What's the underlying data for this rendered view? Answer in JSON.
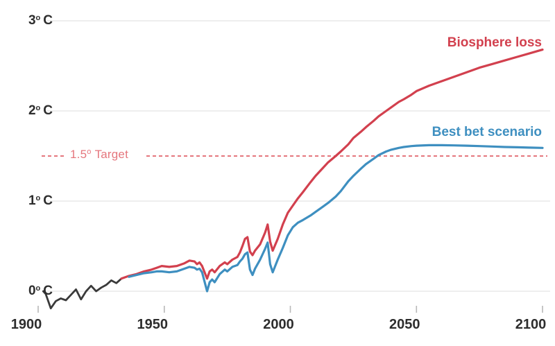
{
  "colors": {
    "background": "#ffffff",
    "grid": "#e9e9e9",
    "tick": "#b8b8b8",
    "axis_text": "#2d2d2d",
    "historical_line": "#3a3a3a",
    "biosphere_line": "#d2404e",
    "bestbet_line": "#3e8fc0",
    "target_line": "#e5767d"
  },
  "chart_data": {
    "type": "line",
    "title": "",
    "xlabel": "",
    "ylabel": "",
    "x_axis": {
      "range": [
        1900,
        2100
      ],
      "ticks": [
        {
          "label": "1900",
          "year": 1900
        },
        {
          "label": "1950",
          "year": 1950
        },
        {
          "label": "2000",
          "year": 2000
        },
        {
          "label": "2050",
          "year": 2050
        },
        {
          "label": "2100",
          "year": 2100
        }
      ]
    },
    "y_axis": {
      "range": [
        -0.25,
        3.1
      ],
      "grid": true,
      "ticks": [
        {
          "num": "0",
          "sup": "o",
          "unit": "C",
          "value": 0
        },
        {
          "num": "1",
          "sup": "o",
          "unit": "C",
          "value": 1
        },
        {
          "num": "2",
          "sup": "o",
          "unit": "C",
          "value": 2
        },
        {
          "num": "3",
          "sup": "o",
          "unit": "C",
          "value": 3
        }
      ]
    },
    "target": {
      "value": 1.5,
      "label_num": "1.5",
      "label_sup": "o",
      "label_word": "Target",
      "color": "#e5767d"
    },
    "legend_position": "inline end-of-line labels",
    "series": [
      {
        "id": "historical",
        "label": "",
        "color": "#3a3a3a",
        "width": 2.8,
        "points": [
          [
            1902,
            0.0
          ],
          [
            1903,
            -0.03
          ],
          [
            1905,
            -0.19
          ],
          [
            1907,
            -0.11
          ],
          [
            1909,
            -0.08
          ],
          [
            1911,
            -0.1
          ],
          [
            1913,
            -0.04
          ],
          [
            1915,
            0.02
          ],
          [
            1917,
            -0.09
          ],
          [
            1919,
            0.0
          ],
          [
            1921,
            0.06
          ],
          [
            1923,
            0.0
          ],
          [
            1925,
            0.04
          ],
          [
            1927,
            0.07
          ],
          [
            1929,
            0.12
          ],
          [
            1931,
            0.09
          ],
          [
            1933,
            0.14
          ]
        ]
      },
      {
        "id": "biosphere-loss",
        "label": "Biosphere loss",
        "color": "#d2404e",
        "width": 3.2,
        "points": [
          [
            1933,
            0.14
          ],
          [
            1936,
            0.17
          ],
          [
            1939,
            0.19
          ],
          [
            1942,
            0.22
          ],
          [
            1945,
            0.24
          ],
          [
            1947,
            0.26
          ],
          [
            1949,
            0.28
          ],
          [
            1952,
            0.27
          ],
          [
            1955,
            0.28
          ],
          [
            1958,
            0.31
          ],
          [
            1960,
            0.34
          ],
          [
            1962,
            0.33
          ],
          [
            1963,
            0.3
          ],
          [
            1964,
            0.32
          ],
          [
            1965,
            0.28
          ],
          [
            1967,
            0.14
          ],
          [
            1968,
            0.22
          ],
          [
            1969,
            0.24
          ],
          [
            1970,
            0.21
          ],
          [
            1972,
            0.28
          ],
          [
            1974,
            0.32
          ],
          [
            1975,
            0.3
          ],
          [
            1977,
            0.35
          ],
          [
            1979,
            0.38
          ],
          [
            1980,
            0.43
          ],
          [
            1981,
            0.5
          ],
          [
            1982,
            0.58
          ],
          [
            1983,
            0.6
          ],
          [
            1984,
            0.44
          ],
          [
            1985,
            0.4
          ],
          [
            1986,
            0.45
          ],
          [
            1988,
            0.52
          ],
          [
            1990,
            0.65
          ],
          [
            1991,
            0.74
          ],
          [
            1992,
            0.55
          ],
          [
            1993,
            0.45
          ],
          [
            1995,
            0.58
          ],
          [
            1997,
            0.74
          ],
          [
            1999,
            0.87
          ],
          [
            2001,
            0.95
          ],
          [
            2003,
            1.03
          ],
          [
            2005,
            1.1
          ],
          [
            2008,
            1.21
          ],
          [
            2010,
            1.28
          ],
          [
            2013,
            1.37
          ],
          [
            2015,
            1.43
          ],
          [
            2018,
            1.5
          ],
          [
            2020,
            1.55
          ],
          [
            2023,
            1.63
          ],
          [
            2025,
            1.7
          ],
          [
            2028,
            1.77
          ],
          [
            2030,
            1.82
          ],
          [
            2033,
            1.89
          ],
          [
            2035,
            1.94
          ],
          [
            2038,
            2.0
          ],
          [
            2040,
            2.04
          ],
          [
            2043,
            2.1
          ],
          [
            2045,
            2.13
          ],
          [
            2048,
            2.18
          ],
          [
            2050,
            2.22
          ],
          [
            2055,
            2.28
          ],
          [
            2060,
            2.33
          ],
          [
            2065,
            2.38
          ],
          [
            2070,
            2.43
          ],
          [
            2075,
            2.48
          ],
          [
            2080,
            2.52
          ],
          [
            2085,
            2.56
          ],
          [
            2090,
            2.6
          ],
          [
            2095,
            2.64
          ],
          [
            2100,
            2.68
          ]
        ]
      },
      {
        "id": "best-bet-scenario",
        "label": "Best bet scenario",
        "color": "#3e8fc0",
        "width": 3.2,
        "points": [
          [
            1936,
            0.16
          ],
          [
            1939,
            0.18
          ],
          [
            1942,
            0.2
          ],
          [
            1945,
            0.21
          ],
          [
            1947,
            0.22
          ],
          [
            1949,
            0.22
          ],
          [
            1952,
            0.21
          ],
          [
            1955,
            0.22
          ],
          [
            1958,
            0.25
          ],
          [
            1960,
            0.27
          ],
          [
            1962,
            0.26
          ],
          [
            1963,
            0.24
          ],
          [
            1964,
            0.25
          ],
          [
            1965,
            0.21
          ],
          [
            1967,
            0.0
          ],
          [
            1968,
            0.1
          ],
          [
            1969,
            0.13
          ],
          [
            1970,
            0.1
          ],
          [
            1972,
            0.19
          ],
          [
            1974,
            0.24
          ],
          [
            1975,
            0.22
          ],
          [
            1977,
            0.27
          ],
          [
            1979,
            0.29
          ],
          [
            1980,
            0.33
          ],
          [
            1981,
            0.36
          ],
          [
            1982,
            0.41
          ],
          [
            1983,
            0.43
          ],
          [
            1984,
            0.24
          ],
          [
            1985,
            0.18
          ],
          [
            1986,
            0.25
          ],
          [
            1988,
            0.35
          ],
          [
            1990,
            0.47
          ],
          [
            1991,
            0.54
          ],
          [
            1992,
            0.3
          ],
          [
            1993,
            0.21
          ],
          [
            1995,
            0.35
          ],
          [
            1997,
            0.48
          ],
          [
            1999,
            0.62
          ],
          [
            2001,
            0.71
          ],
          [
            2003,
            0.76
          ],
          [
            2005,
            0.79
          ],
          [
            2008,
            0.84
          ],
          [
            2010,
            0.88
          ],
          [
            2013,
            0.94
          ],
          [
            2015,
            0.98
          ],
          [
            2018,
            1.05
          ],
          [
            2020,
            1.11
          ],
          [
            2023,
            1.22
          ],
          [
            2025,
            1.28
          ],
          [
            2028,
            1.36
          ],
          [
            2030,
            1.41
          ],
          [
            2033,
            1.47
          ],
          [
            2035,
            1.51
          ],
          [
            2038,
            1.55
          ],
          [
            2040,
            1.57
          ],
          [
            2043,
            1.59
          ],
          [
            2045,
            1.6
          ],
          [
            2048,
            1.61
          ],
          [
            2050,
            1.615
          ],
          [
            2055,
            1.62
          ],
          [
            2060,
            1.62
          ],
          [
            2065,
            1.618
          ],
          [
            2070,
            1.615
          ],
          [
            2075,
            1.61
          ],
          [
            2080,
            1.605
          ],
          [
            2085,
            1.6
          ],
          [
            2090,
            1.597
          ],
          [
            2095,
            1.593
          ],
          [
            2100,
            1.59
          ]
        ]
      }
    ]
  }
}
